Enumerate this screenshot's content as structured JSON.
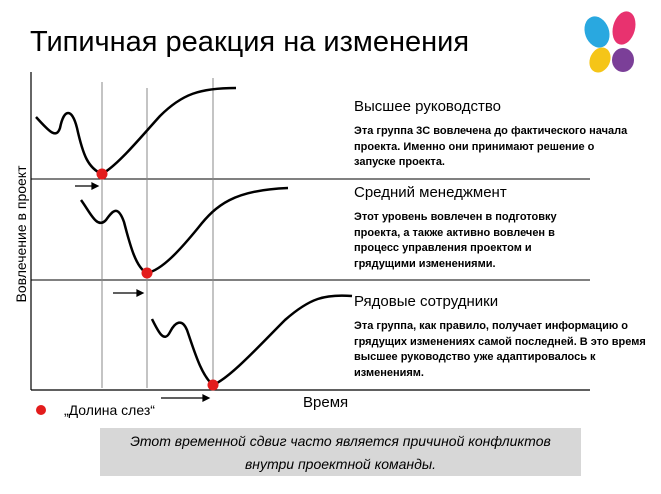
{
  "title": "Типичная реакция на изменения",
  "axes": {
    "y_label": "Вовлечение в проект",
    "x_label": "Время"
  },
  "groups": [
    {
      "title": "Высшее руководство",
      "description": "Эта группа 3С вовлечена до фактического начала проекта. Именно они принимают решение о запуске проекта."
    },
    {
      "title": "Средний менеджмент",
      "description": "Этот уровень вовлечен в подготовку проекта, а также активно вовлечен в процесс управления проектом и грядущими изменениями."
    },
    {
      "title": "Рядовые сотрудники",
      "description": "Эта группа, как правило, получает информацию о грядущих изменениях самой последней. В это время высшее руководство уже адаптировалось к изменениям."
    }
  ],
  "legend": {
    "label": "„Долина слез“",
    "marker_color": "#e31c1c"
  },
  "note": {
    "line1": "Этот временной сдвиг часто является причиной конфликтов",
    "line2": "внутри проектной команды."
  },
  "colors": {
    "curve": "#000000",
    "guide": "#888888",
    "marker": "#e31c1c",
    "note_bg": "#d7d7d7"
  },
  "logo": {
    "icon": "butterfly-logo-icon",
    "colors": [
      "#29a8e0",
      "#e8326f",
      "#f5c518",
      "#7b3f98"
    ]
  }
}
